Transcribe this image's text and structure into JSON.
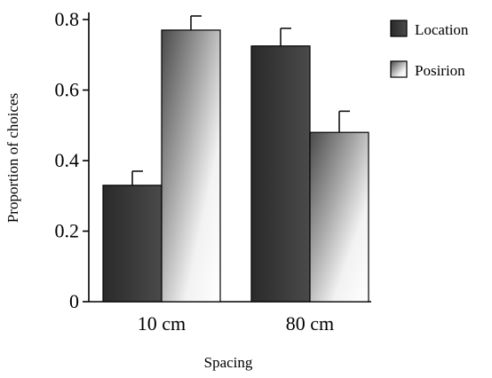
{
  "chart_data": {
    "type": "bar",
    "categories": [
      "10 cm",
      "80 cm"
    ],
    "series": [
      {
        "name": "Location",
        "values": [
          0.33,
          0.725
        ],
        "errors": [
          0.04,
          0.05
        ],
        "color": "#333333",
        "style": "dark-gradient"
      },
      {
        "name": "Posirion",
        "values": [
          0.77,
          0.48
        ],
        "errors": [
          0.04,
          0.06
        ],
        "color": "#ffffff",
        "style": "light-gradient"
      }
    ],
    "title": "",
    "xlabel": "Spacing",
    "ylabel": "Proportion of choices",
    "ylim": [
      0,
      0.8
    ],
    "yticks": [
      "0",
      "0.2",
      "0.4",
      "0.6",
      "0.8"
    ],
    "legend_position": "right",
    "grid": false
  }
}
